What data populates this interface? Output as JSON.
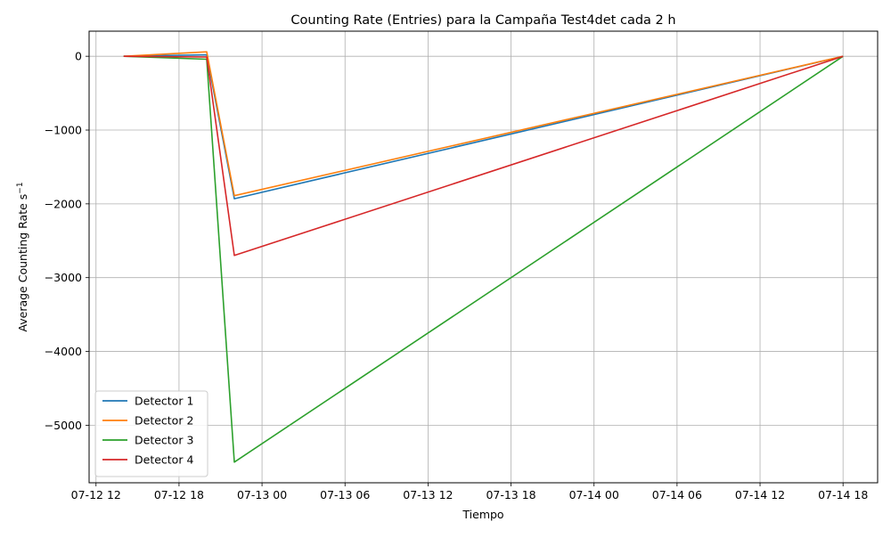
{
  "chart_data": {
    "type": "line",
    "title": "Counting Rate (Entries) para la Campaña Test4det cada 2 h",
    "xlabel": "Tiempo",
    "ylabel_main": "Average Counting Rate s",
    "ylabel_sup": "−1",
    "x": [
      "2023-07-12 14:00",
      "2023-07-12 20:00",
      "2023-07-12 22:00",
      "2023-07-14 18:00"
    ],
    "xlim": [
      "2023-07-12 11:30",
      "2023-07-14 20:30"
    ],
    "xticks": [
      {
        "t": "2023-07-12 12:00",
        "label": "07-12 12"
      },
      {
        "t": "2023-07-12 18:00",
        "label": "07-12 18"
      },
      {
        "t": "2023-07-13 00:00",
        "label": "07-13 00"
      },
      {
        "t": "2023-07-13 06:00",
        "label": "07-13 06"
      },
      {
        "t": "2023-07-13 12:00",
        "label": "07-13 12"
      },
      {
        "t": "2023-07-13 18:00",
        "label": "07-13 18"
      },
      {
        "t": "2023-07-14 00:00",
        "label": "07-14 00"
      },
      {
        "t": "2023-07-14 06:00",
        "label": "07-14 06"
      },
      {
        "t": "2023-07-14 12:00",
        "label": "07-14 12"
      },
      {
        "t": "2023-07-14 18:00",
        "label": "07-14 18"
      }
    ],
    "ylim": [
      -5780,
      340
    ],
    "yticks": [
      0,
      -1000,
      -2000,
      -3000,
      -4000,
      -5000
    ],
    "ytick_labels": [
      "0",
      "−1000",
      "−2000",
      "−3000",
      "−4000",
      "−5000"
    ],
    "grid": true,
    "legend_position": "lower-left",
    "series": [
      {
        "name": "Detector 1",
        "color": "#1f77b4",
        "values": [
          0,
          20,
          -1930,
          0
        ]
      },
      {
        "name": "Detector 2",
        "color": "#ff7f0e",
        "values": [
          0,
          60,
          -1890,
          0
        ]
      },
      {
        "name": "Detector 3",
        "color": "#2ca02c",
        "values": [
          0,
          -40,
          -5500,
          0
        ]
      },
      {
        "name": "Detector 4",
        "color": "#d62728",
        "values": [
          0,
          -10,
          -2700,
          0
        ]
      }
    ]
  }
}
